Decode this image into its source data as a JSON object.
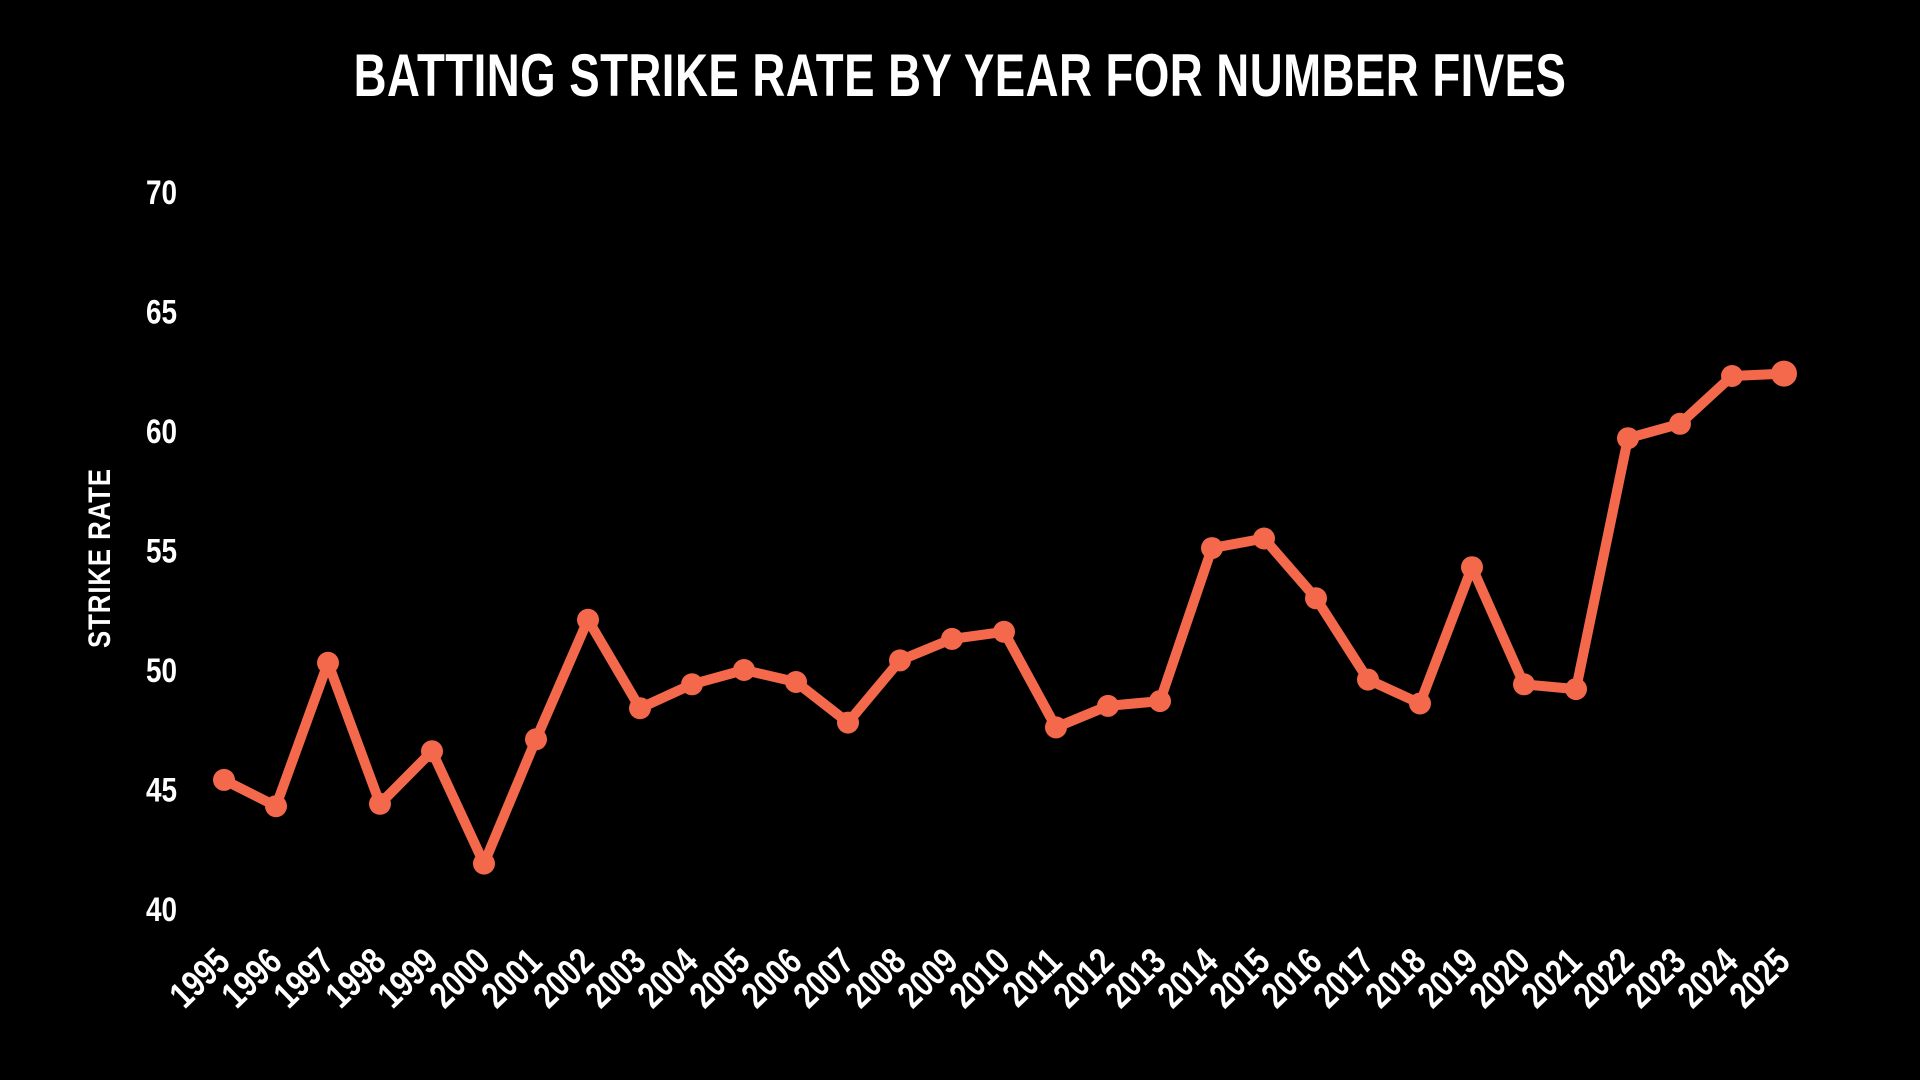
{
  "chart_data": {
    "type": "line",
    "title": "BATTING STRIKE RATE BY YEAR FOR NUMBER FIVES",
    "ylabel": "STRIKE RATE",
    "xlabel": "",
    "x": [
      "1995",
      "1996",
      "1997",
      "1998",
      "1999",
      "2000",
      "2001",
      "2002",
      "2003",
      "2004",
      "2005",
      "2006",
      "2007",
      "2008",
      "2009",
      "2010",
      "2011",
      "2012",
      "2013",
      "2014",
      "2015",
      "2016",
      "2017",
      "2018",
      "2019",
      "2020",
      "2021",
      "2022",
      "2023",
      "2024",
      "2025"
    ],
    "values": [
      45.4,
      44.3,
      50.3,
      44.4,
      46.6,
      41.9,
      47.1,
      52.1,
      48.4,
      49.4,
      50.0,
      49.5,
      47.8,
      50.4,
      51.3,
      51.6,
      47.6,
      48.5,
      48.7,
      55.1,
      55.5,
      53.0,
      49.6,
      48.6,
      54.3,
      49.4,
      49.2,
      59.7,
      60.3,
      62.3,
      62.4
    ],
    "yticks": [
      40,
      45,
      50,
      55,
      60,
      65,
      70
    ],
    "ylim": [
      40,
      70
    ],
    "grid": false,
    "legend": false,
    "marker": "circle",
    "colors": {
      "line": "#F4684B",
      "text": "#FFFFFF",
      "background": "#000000"
    }
  }
}
